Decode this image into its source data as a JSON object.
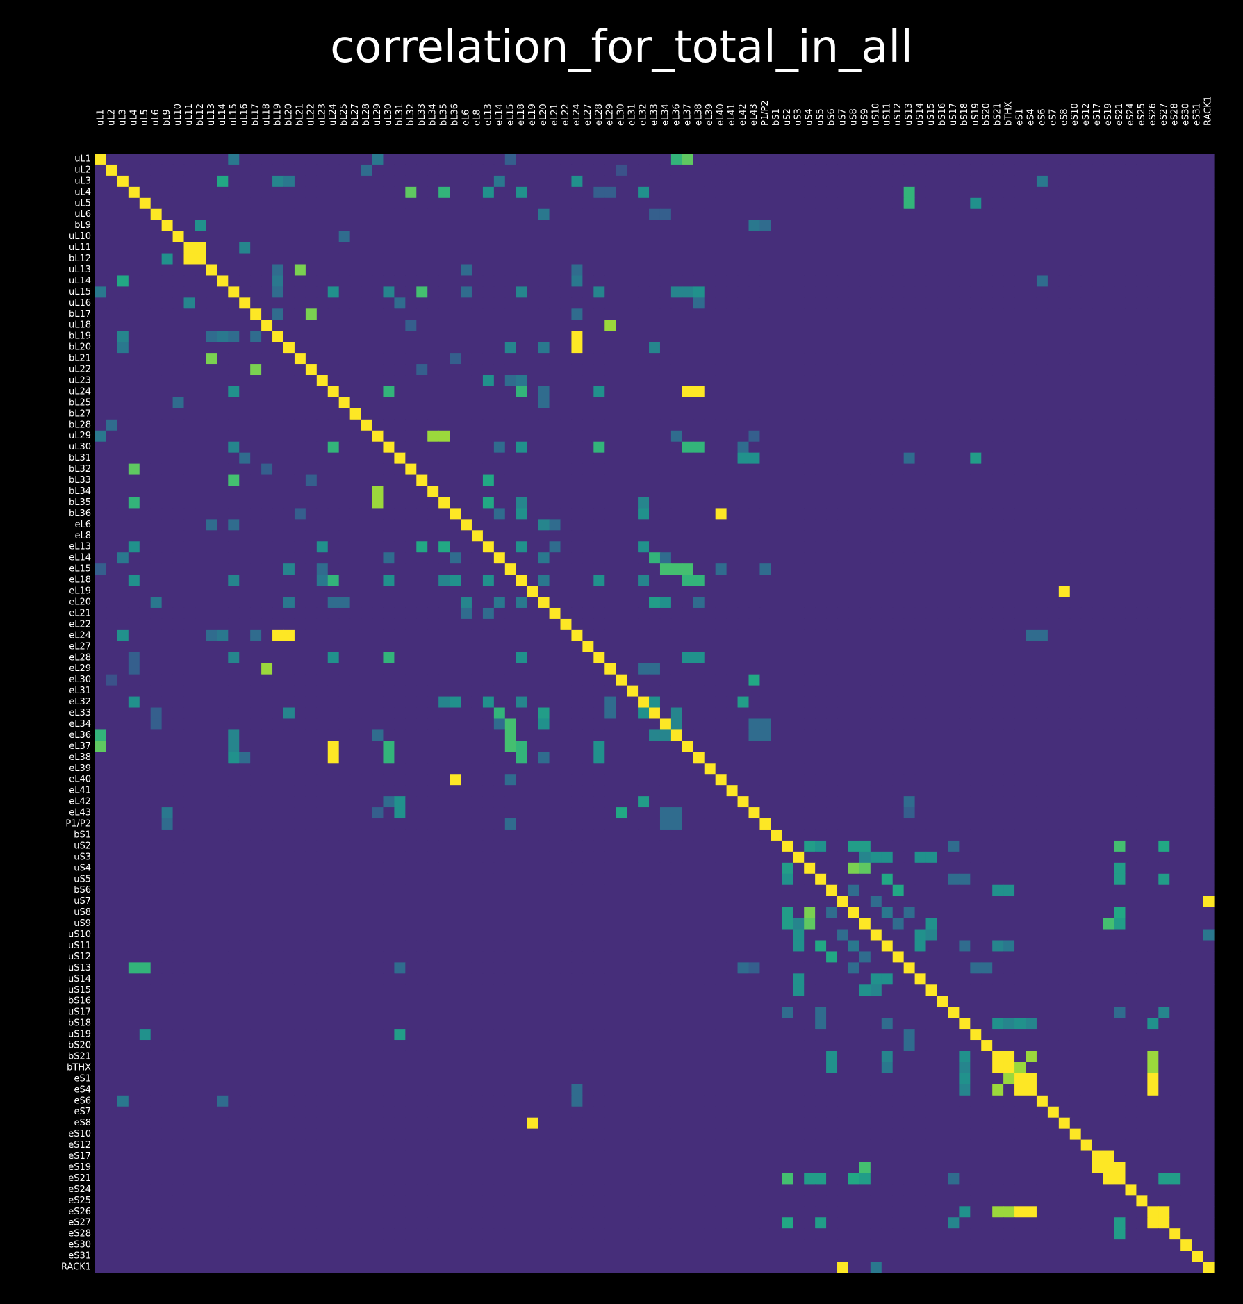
{
  "chart_data": {
    "type": "heatmap",
    "title": "correlation_for_total_in_all",
    "xlabel": "",
    "ylabel": "",
    "colormap": "viridis",
    "value_range": [
      0,
      1
    ],
    "x_labels": [
      "uL1",
      "uL2",
      "uL3",
      "uL4",
      "uL5",
      "uL6",
      "bL9",
      "uL10",
      "uL11",
      "bL12",
      "uL13",
      "uL14",
      "uL15",
      "uL16",
      "bL17",
      "uL18",
      "bL19",
      "bL20",
      "bL21",
      "uL22",
      "uL23",
      "uL24",
      "bL25",
      "bL27",
      "bL28",
      "uL29",
      "uL30",
      "bL31",
      "bL32",
      "bL33",
      "bL34",
      "bL35",
      "bL36",
      "eL6",
      "eL8",
      "eL13",
      "eL14",
      "eL15",
      "eL18",
      "eL19",
      "eL20",
      "eL21",
      "eL22",
      "eL24",
      "eL27",
      "eL28",
      "eL29",
      "eL30",
      "eL31",
      "eL32",
      "eL33",
      "eL34",
      "eL36",
      "eL37",
      "eL38",
      "eL39",
      "eL40",
      "eL41",
      "eL42",
      "eL43",
      "P1/P2",
      "bS1",
      "uS2",
      "uS3",
      "uS4",
      "uS5",
      "bS6",
      "uS7",
      "uS8",
      "uS9",
      "uS10",
      "uS11",
      "uS12",
      "uS13",
      "uS14",
      "uS15",
      "bS16",
      "uS17",
      "bS18",
      "uS19",
      "bS20",
      "bS21",
      "bTHX",
      "eS1",
      "eS4",
      "eS6",
      "eS7",
      "eS8",
      "eS10",
      "eS12",
      "eS17",
      "eS19",
      "eS21",
      "eS24",
      "eS25",
      "eS26",
      "eS27",
      "eS28",
      "eS30",
      "eS31",
      "RACK1"
    ],
    "y_labels": [
      "uL1",
      "uL2",
      "uL3",
      "uL4",
      "uL5",
      "uL6",
      "bL9",
      "uL10",
      "uL11",
      "bL12",
      "uL13",
      "uL14",
      "uL15",
      "uL16",
      "bL17",
      "uL18",
      "bL19",
      "bL20",
      "bL21",
      "uL22",
      "uL23",
      "uL24",
      "bL25",
      "bL27",
      "bL28",
      "uL29",
      "uL30",
      "bL31",
      "bL32",
      "bL33",
      "bL34",
      "bL35",
      "bL36",
      "eL6",
      "eL8",
      "eL13",
      "eL14",
      "eL15",
      "eL18",
      "eL19",
      "eL20",
      "eL21",
      "eL22",
      "eL24",
      "eL27",
      "eL28",
      "eL29",
      "eL30",
      "eL31",
      "eL32",
      "eL33",
      "eL34",
      "eL36",
      "eL37",
      "eL38",
      "eL39",
      "eL40",
      "eL41",
      "eL42",
      "eL43",
      "P1/P2",
      "bS1",
      "uS2",
      "uS3",
      "uS4",
      "uS5",
      "bS6",
      "uS7",
      "uS8",
      "uS9",
      "uS10",
      "uS11",
      "uS12",
      "uS13",
      "uS14",
      "uS15",
      "bS16",
      "uS17",
      "bS18",
      "uS19",
      "bS20",
      "bS21",
      "bTHX",
      "eS1",
      "eS4",
      "eS6",
      "eS7",
      "eS8",
      "eS10",
      "eS12",
      "eS17",
      "eS19",
      "eS21",
      "eS24",
      "eS25",
      "eS26",
      "eS27",
      "eS28",
      "eS30",
      "eS31",
      "RACK1"
    ],
    "background_value": 0.13,
    "diagonal_value": 1.0,
    "cells": [
      [
        0,
        53,
        0.75
      ],
      [
        0,
        25,
        0.35
      ],
      [
        0,
        12,
        0.4
      ],
      [
        0,
        37,
        0.3
      ],
      [
        1,
        24,
        0.35
      ],
      [
        1,
        47,
        0.25
      ],
      [
        2,
        11,
        0.6
      ],
      [
        2,
        16,
        0.45
      ],
      [
        2,
        17,
        0.4
      ],
      [
        2,
        43,
        0.5
      ],
      [
        2,
        85,
        0.35
      ],
      [
        2,
        36,
        0.4
      ],
      [
        3,
        28,
        0.75
      ],
      [
        3,
        35,
        0.5
      ],
      [
        3,
        38,
        0.5
      ],
      [
        3,
        49,
        0.5
      ],
      [
        3,
        45,
        0.3
      ],
      [
        3,
        46,
        0.3
      ],
      [
        4,
        73,
        0.65
      ],
      [
        4,
        79,
        0.45
      ],
      [
        5,
        40,
        0.4
      ],
      [
        5,
        51,
        0.3
      ],
      [
        5,
        50,
        0.3
      ],
      [
        6,
        60,
        0.35
      ],
      [
        8,
        9,
        1.0
      ],
      [
        8,
        13,
        0.45
      ],
      [
        9,
        8,
        1.0
      ],
      [
        9,
        6,
        0.5
      ],
      [
        10,
        18,
        0.8
      ],
      [
        10,
        33,
        0.35
      ],
      [
        10,
        43,
        0.35
      ],
      [
        10,
        16,
        0.35
      ],
      [
        11,
        2,
        0.6
      ],
      [
        11,
        85,
        0.35
      ],
      [
        12,
        0,
        0.4
      ],
      [
        12,
        21,
        0.45
      ],
      [
        12,
        29,
        0.7
      ],
      [
        12,
        38,
        0.45
      ],
      [
        12,
        45,
        0.45
      ],
      [
        12,
        54,
        0.5
      ],
      [
        12,
        26,
        0.35
      ],
      [
        13,
        8,
        0.45
      ],
      [
        13,
        27,
        0.35
      ],
      [
        13,
        54,
        0.35
      ],
      [
        14,
        19,
        0.8
      ],
      [
        14,
        43,
        0.35
      ],
      [
        14,
        16,
        0.35
      ],
      [
        15,
        46,
        0.85
      ],
      [
        15,
        28,
        0.3
      ],
      [
        16,
        2,
        0.45
      ],
      [
        16,
        11,
        0.4
      ],
      [
        16,
        12,
        0.35
      ],
      [
        16,
        43,
        1.0
      ],
      [
        17,
        2,
        0.35
      ],
      [
        17,
        37,
        0.45
      ],
      [
        17,
        40,
        0.4
      ],
      [
        17,
        50,
        0.45
      ],
      [
        18,
        10,
        0.7
      ],
      [
        18,
        32,
        0.3
      ],
      [
        19,
        14,
        0.8
      ],
      [
        19,
        29,
        0.3
      ],
      [
        20,
        35,
        0.5
      ],
      [
        20,
        38,
        0.4
      ],
      [
        21,
        12,
        0.5
      ],
      [
        21,
        26,
        0.65
      ],
      [
        21,
        38,
        0.65
      ],
      [
        21,
        45,
        0.5
      ],
      [
        21,
        54,
        1.0
      ],
      [
        21,
        40,
        0.35
      ],
      [
        22,
        7,
        0.35
      ],
      [
        22,
        40,
        0.35
      ],
      [
        24,
        1,
        0.35
      ],
      [
        25,
        0,
        0.4
      ],
      [
        25,
        31,
        0.85
      ],
      [
        25,
        52,
        0.35
      ],
      [
        25,
        59,
        0.3
      ],
      [
        26,
        12,
        0.45
      ],
      [
        26,
        21,
        0.65
      ],
      [
        26,
        38,
        0.45
      ],
      [
        26,
        45,
        0.65
      ],
      [
        26,
        54,
        0.65
      ],
      [
        26,
        36,
        0.35
      ],
      [
        27,
        59,
        0.5
      ],
      [
        27,
        73,
        0.35
      ],
      [
        27,
        79,
        0.5
      ],
      [
        29,
        12,
        0.7
      ],
      [
        30,
        25,
        0.85
      ],
      [
        31,
        3,
        0.65
      ],
      [
        31,
        35,
        0.6
      ],
      [
        31,
        38,
        0.45
      ],
      [
        31,
        49,
        0.45
      ],
      [
        32,
        56,
        1.0
      ],
      [
        32,
        36,
        0.35
      ],
      [
        33,
        40,
        0.45
      ],
      [
        33,
        41,
        0.35
      ],
      [
        33,
        12,
        0.35
      ],
      [
        35,
        3,
        0.5
      ],
      [
        35,
        20,
        0.5
      ],
      [
        35,
        29,
        0.6
      ],
      [
        35,
        38,
        0.45
      ],
      [
        35,
        49,
        0.5
      ],
      [
        35,
        41,
        0.35
      ],
      [
        36,
        50,
        0.6
      ],
      [
        36,
        51,
        0.35
      ],
      [
        36,
        40,
        0.4
      ],
      [
        36,
        26,
        0.35
      ],
      [
        37,
        20,
        0.35
      ],
      [
        37,
        51,
        0.6
      ],
      [
        37,
        53,
        0.7
      ],
      [
        37,
        60,
        0.35
      ],
      [
        38,
        3,
        0.5
      ],
      [
        38,
        21,
        0.65
      ],
      [
        38,
        26,
        0.5
      ],
      [
        38,
        32,
        0.5
      ],
      [
        38,
        35,
        0.5
      ],
      [
        38,
        45,
        0.5
      ],
      [
        38,
        54,
        0.65
      ],
      [
        38,
        40,
        0.4
      ],
      [
        39,
        87,
        1.0
      ],
      [
        40,
        5,
        0.4
      ],
      [
        40,
        17,
        0.4
      ],
      [
        40,
        21,
        0.35
      ],
      [
        40,
        33,
        0.45
      ],
      [
        40,
        50,
        0.5
      ],
      [
        40,
        51,
        0.5
      ],
      [
        40,
        54,
        0.35
      ],
      [
        43,
        2,
        0.45
      ],
      [
        43,
        11,
        0.4
      ],
      [
        43,
        16,
        0.4
      ],
      [
        43,
        17,
        1.0
      ],
      [
        43,
        85,
        0.35
      ],
      [
        45,
        12,
        0.45
      ],
      [
        45,
        21,
        0.5
      ],
      [
        45,
        26,
        0.6
      ],
      [
        45,
        38,
        0.45
      ],
      [
        45,
        54,
        0.5
      ],
      [
        46,
        15,
        0.85
      ],
      [
        46,
        49,
        0.35
      ],
      [
        46,
        50,
        0.35
      ],
      [
        47,
        59,
        0.6
      ],
      [
        49,
        3,
        0.5
      ],
      [
        49,
        32,
        0.5
      ],
      [
        49,
        35,
        0.5
      ],
      [
        49,
        38,
        0.45
      ],
      [
        49,
        50,
        0.5
      ],
      [
        50,
        36,
        0.65
      ],
      [
        50,
        40,
        0.55
      ],
      [
        50,
        17,
        0.45
      ],
      [
        51,
        37,
        0.7
      ],
      [
        51,
        52,
        0.45
      ],
      [
        51,
        60,
        0.35
      ],
      [
        52,
        0,
        0.65
      ],
      [
        52,
        12,
        0.45
      ],
      [
        52,
        37,
        0.7
      ],
      [
        52,
        50,
        0.45
      ],
      [
        52,
        60,
        0.35
      ],
      [
        53,
        12,
        0.45
      ],
      [
        53,
        21,
        1.0
      ],
      [
        53,
        26,
        0.65
      ],
      [
        53,
        38,
        0.65
      ],
      [
        53,
        45,
        0.5
      ],
      [
        56,
        32,
        1.0
      ],
      [
        56,
        37,
        0.35
      ],
      [
        58,
        26,
        0.35
      ],
      [
        58,
        27,
        0.5
      ],
      [
        58,
        49,
        0.55
      ],
      [
        58,
        73,
        0.35
      ],
      [
        59,
        6,
        0.4
      ],
      [
        59,
        51,
        0.35
      ],
      [
        59,
        52,
        0.35
      ],
      [
        62,
        64,
        0.5
      ],
      [
        62,
        65,
        0.45
      ],
      [
        62,
        69,
        0.55
      ],
      [
        62,
        77,
        0.35
      ],
      [
        62,
        92,
        0.7
      ],
      [
        62,
        96,
        0.6
      ],
      [
        63,
        70,
        0.4
      ],
      [
        63,
        71,
        0.5
      ],
      [
        63,
        75,
        0.5
      ],
      [
        64,
        62,
        0.55
      ],
      [
        64,
        69,
        0.75
      ],
      [
        64,
        92,
        0.5
      ],
      [
        65,
        62,
        0.5
      ],
      [
        65,
        78,
        0.35
      ],
      [
        65,
        92,
        0.5
      ],
      [
        65,
        96,
        0.55
      ],
      [
        66,
        72,
        0.6
      ],
      [
        66,
        82,
        0.5
      ],
      [
        67,
        100,
        1.0
      ],
      [
        67,
        70,
        0.35
      ],
      [
        68,
        62,
        0.55
      ],
      [
        68,
        64,
        0.8
      ],
      [
        68,
        66,
        0.35
      ],
      [
        68,
        73,
        0.35
      ],
      [
        68,
        92,
        0.6
      ],
      [
        69,
        63,
        0.45
      ],
      [
        69,
        75,
        0.5
      ],
      [
        69,
        91,
        0.7
      ],
      [
        70,
        63,
        0.5
      ],
      [
        70,
        75,
        0.45
      ],
      [
        70,
        100,
        0.4
      ],
      [
        71,
        65,
        0.6
      ],
      [
        71,
        68,
        0.4
      ],
      [
        71,
        78,
        0.35
      ],
      [
        71,
        82,
        0.4
      ],
      [
        72,
        69,
        0.35
      ],
      [
        73,
        3,
        0.65
      ],
      [
        73,
        27,
        0.35
      ],
      [
        73,
        80,
        0.35
      ],
      [
        73,
        59,
        0.3
      ],
      [
        74,
        63,
        0.5
      ],
      [
        74,
        70,
        0.5
      ],
      [
        74,
        71,
        0.5
      ],
      [
        77,
        62,
        0.35
      ],
      [
        77,
        65,
        0.35
      ],
      [
        77,
        92,
        0.35
      ],
      [
        77,
        96,
        0.45
      ],
      [
        78,
        71,
        0.35
      ],
      [
        78,
        82,
        0.45
      ],
      [
        78,
        84,
        0.45
      ],
      [
        78,
        95,
        0.5
      ],
      [
        79,
        4,
        0.5
      ],
      [
        79,
        27,
        0.55
      ],
      [
        79,
        73,
        0.35
      ],
      [
        81,
        66,
        0.5
      ],
      [
        81,
        71,
        0.45
      ],
      [
        81,
        78,
        0.5
      ],
      [
        81,
        82,
        1.0
      ],
      [
        81,
        84,
        0.85
      ],
      [
        81,
        95,
        0.85
      ],
      [
        83,
        78,
        0.5
      ],
      [
        83,
        82,
        0.85
      ],
      [
        83,
        84,
        1.0
      ],
      [
        83,
        95,
        1.0
      ],
      [
        84,
        43,
        0.35
      ],
      [
        85,
        2,
        0.4
      ],
      [
        85,
        11,
        0.35
      ],
      [
        87,
        39,
        1.0
      ],
      [
        90,
        91,
        1.0
      ],
      [
        91,
        92,
        1.0
      ],
      [
        91,
        69,
        0.7
      ],
      [
        92,
        62,
        0.7
      ],
      [
        92,
        64,
        0.55
      ],
      [
        92,
        65,
        0.55
      ],
      [
        92,
        69,
        0.55
      ],
      [
        92,
        77,
        0.35
      ],
      [
        92,
        97,
        0.55
      ],
      [
        95,
        78,
        0.5
      ],
      [
        95,
        82,
        0.85
      ],
      [
        95,
        84,
        1.0
      ],
      [
        95,
        96,
        1.0
      ],
      [
        96,
        62,
        0.6
      ],
      [
        96,
        65,
        0.55
      ],
      [
        96,
        77,
        0.4
      ],
      [
        96,
        92,
        0.55
      ],
      [
        100,
        67,
        1.0
      ],
      [
        100,
        70,
        0.4
      ]
    ]
  }
}
